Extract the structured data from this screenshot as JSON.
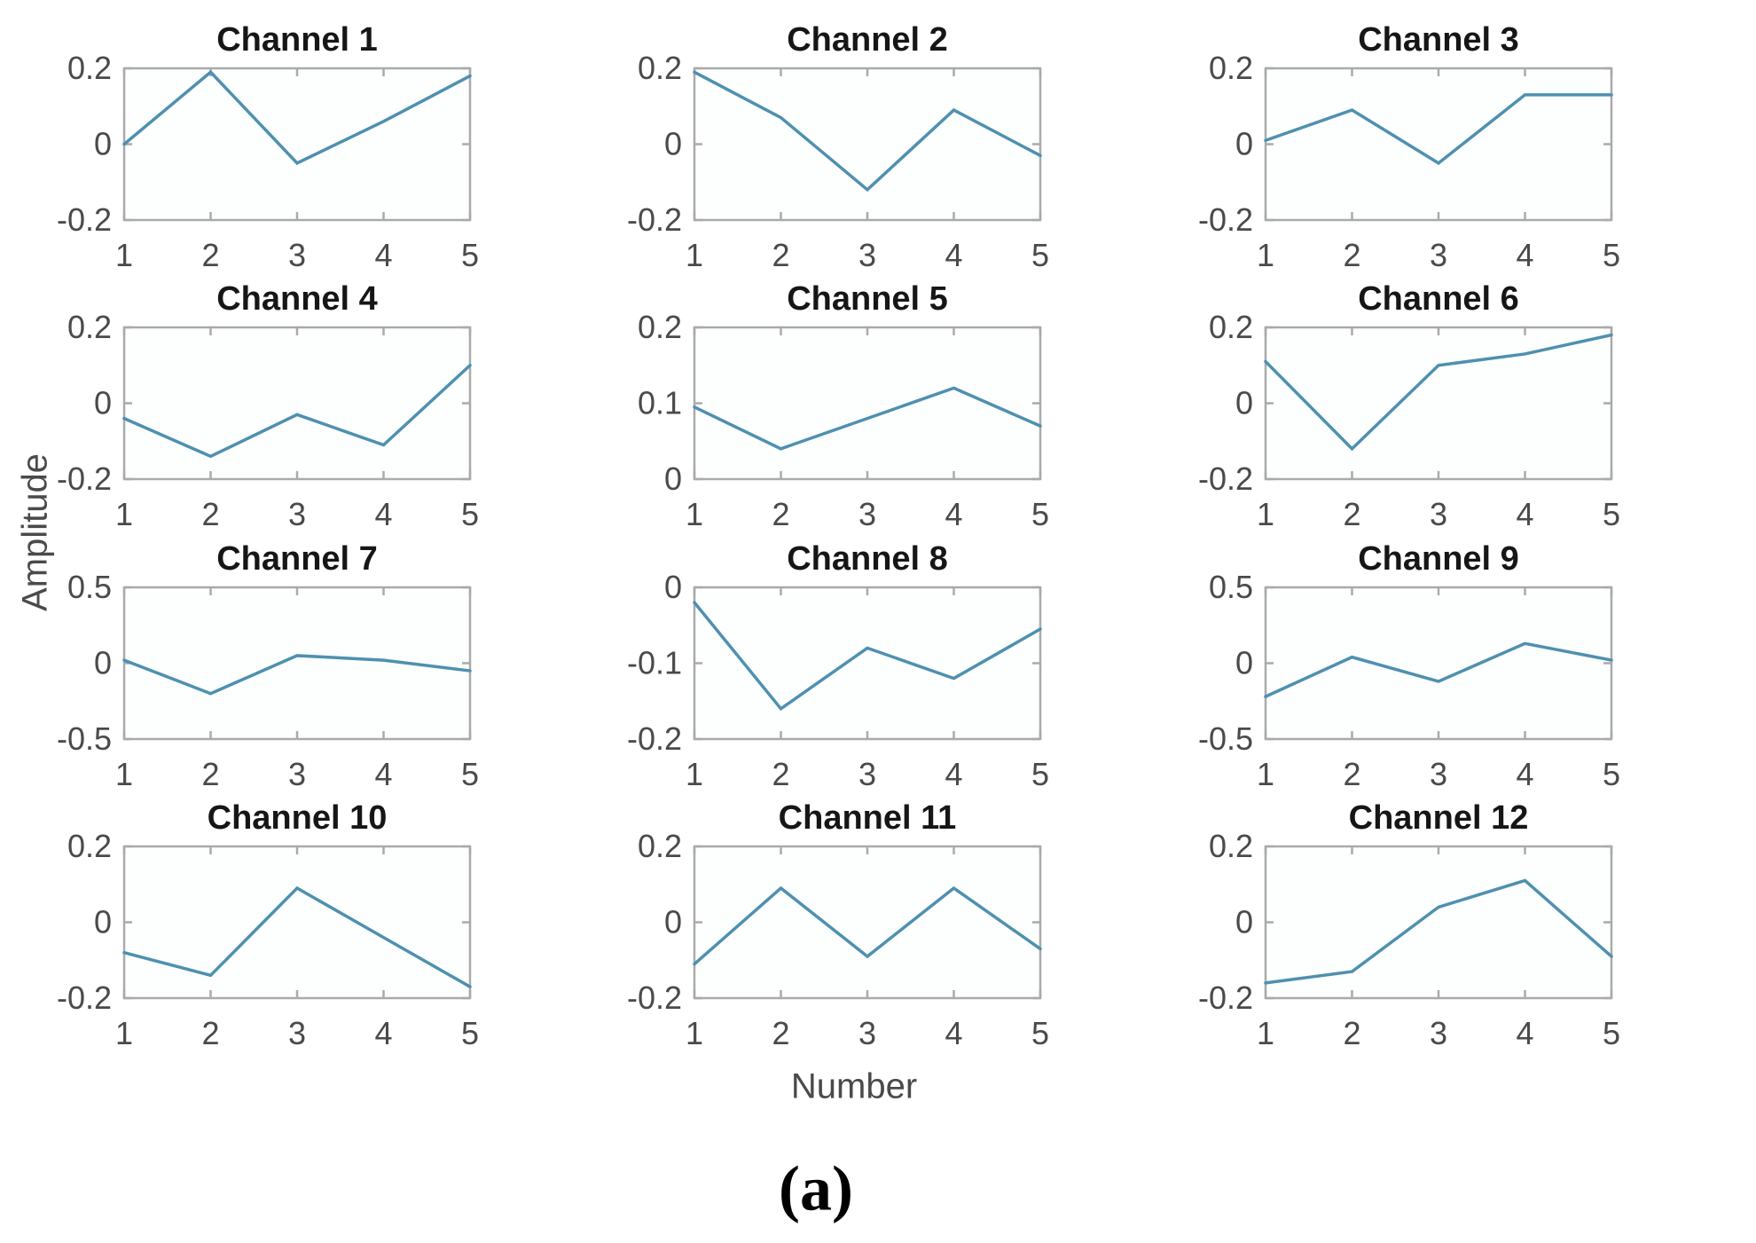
{
  "figure": {
    "ylabel": "Amplitude",
    "xlabel": "Number",
    "caption": "(a)"
  },
  "chart_data": {
    "type": "line",
    "layout": "4 rows x 3 columns of subplots",
    "x": [
      1,
      2,
      3,
      4,
      5
    ],
    "xlabel": "Number",
    "ylabel": "Amplitude",
    "caption": "(a)",
    "legend": "none",
    "grid": "off",
    "line_color": "#4e90b0",
    "axis_color": "#aaaaaa",
    "tick_label_color": "#4a4a4a",
    "subplots": [
      {
        "title": "Channel 1",
        "values": [
          0.0,
          0.19,
          -0.05,
          0.06,
          0.18
        ],
        "ylim": [
          -0.2,
          0.2
        ],
        "yticks": [
          0.2,
          0,
          -0.2
        ]
      },
      {
        "title": "Channel 2",
        "values": [
          0.19,
          0.07,
          -0.12,
          0.09,
          -0.03
        ],
        "ylim": [
          -0.2,
          0.2
        ],
        "yticks": [
          0.2,
          0,
          -0.2
        ]
      },
      {
        "title": "Channel 3",
        "values": [
          0.01,
          0.09,
          -0.05,
          0.13,
          0.13
        ],
        "ylim": [
          -0.2,
          0.2
        ],
        "yticks": [
          0.2,
          0,
          -0.2
        ]
      },
      {
        "title": "Channel 4",
        "values": [
          -0.04,
          -0.14,
          -0.03,
          -0.11,
          0.1
        ],
        "ylim": [
          -0.2,
          0.2
        ],
        "yticks": [
          0.2,
          0,
          -0.2
        ]
      },
      {
        "title": "Channel 5",
        "values": [
          0.095,
          0.04,
          0.08,
          0.12,
          0.07
        ],
        "ylim": [
          0,
          0.2
        ],
        "yticks": [
          0.2,
          0.1,
          0
        ]
      },
      {
        "title": "Channel 6",
        "values": [
          0.11,
          -0.12,
          0.1,
          0.13,
          0.18
        ],
        "ylim": [
          -0.2,
          0.2
        ],
        "yticks": [
          0.2,
          0,
          -0.2
        ]
      },
      {
        "title": "Channel 7",
        "values": [
          0.02,
          -0.2,
          0.05,
          0.02,
          -0.05
        ],
        "ylim": [
          -0.5,
          0.5
        ],
        "yticks": [
          0.5,
          0,
          -0.5
        ]
      },
      {
        "title": "Channel 8",
        "values": [
          -0.02,
          -0.16,
          -0.08,
          -0.12,
          -0.055
        ],
        "ylim": [
          -0.2,
          0
        ],
        "yticks": [
          0,
          -0.1,
          -0.2
        ]
      },
      {
        "title": "Channel 9",
        "values": [
          -0.22,
          0.04,
          -0.12,
          0.13,
          0.02
        ],
        "ylim": [
          -0.5,
          0.5
        ],
        "yticks": [
          0.5,
          0,
          -0.5
        ]
      },
      {
        "title": "Channel 10",
        "values": [
          -0.08,
          -0.14,
          0.09,
          -0.04,
          -0.17
        ],
        "ylim": [
          -0.2,
          0.2
        ],
        "yticks": [
          0.2,
          0,
          -0.2
        ]
      },
      {
        "title": "Channel 11",
        "values": [
          -0.11,
          0.09,
          -0.09,
          0.09,
          -0.07
        ],
        "ylim": [
          -0.2,
          0.2
        ],
        "yticks": [
          0.2,
          0,
          -0.2
        ]
      },
      {
        "title": "Channel 12",
        "values": [
          -0.16,
          -0.13,
          0.04,
          0.11,
          -0.09
        ],
        "ylim": [
          -0.2,
          0.2
        ],
        "yticks": [
          0.2,
          0,
          -0.2
        ]
      }
    ]
  }
}
